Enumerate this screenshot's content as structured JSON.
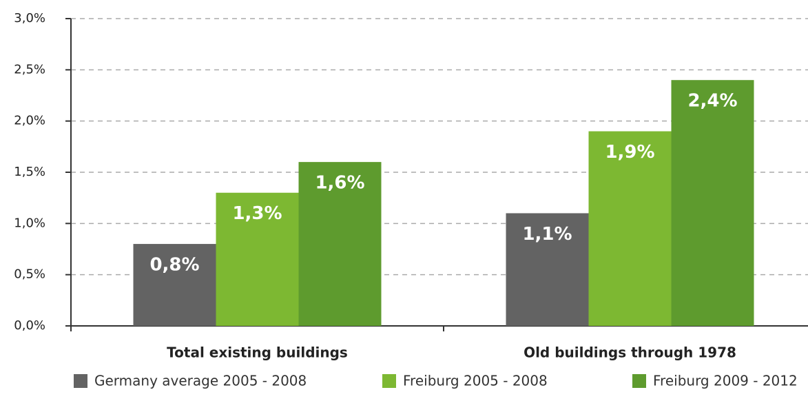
{
  "chart_data": {
    "type": "bar",
    "categories": [
      "Total existing buildings",
      "Old buildings through 1978"
    ],
    "series": [
      {
        "name": "Germany average 2005 - 2008",
        "color": "#636363",
        "values": [
          0.8,
          1.1
        ],
        "value_labels": [
          "0,8%",
          "1,1%"
        ]
      },
      {
        "name": "Freiburg 2005 - 2008",
        "color": "#7db832",
        "values": [
          1.3,
          1.9
        ],
        "value_labels": [
          "1,3%",
          "1,9%"
        ]
      },
      {
        "name": "Freiburg 2009 - 2012",
        "color": "#5e9b2e",
        "values": [
          1.6,
          2.4
        ],
        "value_labels": [
          "1,6%",
          "2,4%"
        ]
      }
    ],
    "ylim": [
      0,
      3
    ],
    "yticks": [
      {
        "value": 0,
        "label": "0,0%"
      },
      {
        "value": 0.5,
        "label": "0,5%"
      },
      {
        "value": 1,
        "label": "1,0%"
      },
      {
        "value": 1.5,
        "label": "1,5%"
      },
      {
        "value": 2,
        "label": "2,0%"
      },
      {
        "value": 2.5,
        "label": "2,5%"
      },
      {
        "value": 3,
        "label": "3,0%"
      }
    ],
    "grid": true,
    "legend": "bottom"
  }
}
